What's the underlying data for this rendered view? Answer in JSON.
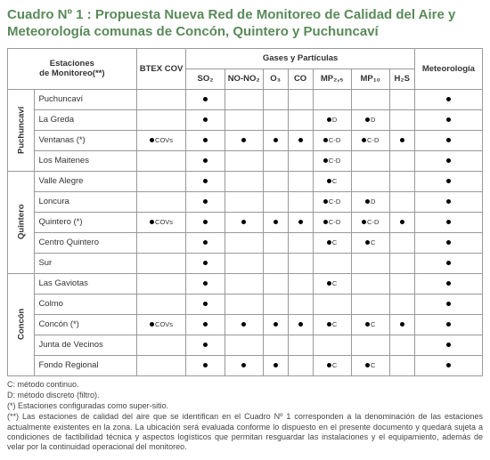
{
  "title": "Cuadro Nº 1 : Propuesta Nueva Red de Monitoreo de Calidad del Aire y Meteorología comunas de Concón, Quintero y Puchuncaví",
  "headers": {
    "estaciones": "Estaciones\nde Monitoreo(**)",
    "gases": "Gases y Partículas",
    "meteo": "Meteorología",
    "btex": "BTEX COV",
    "so2": "SO₂",
    "nono2": "NO-NO₂",
    "o3": "O₃",
    "co": "CO",
    "mp25": "MP₂,₅",
    "mp10": "MP₁₀",
    "h2s": "H₂S"
  },
  "groups": [
    {
      "name": "Puchuncaví",
      "rows": [
        {
          "station": "Puchuncaví",
          "btex": "",
          "so2": "•",
          "nono2": "",
          "o3": "",
          "co": "",
          "mp25": "",
          "mp10": "",
          "h2s": "",
          "meteo": "•"
        },
        {
          "station": "La Greda",
          "btex": "",
          "so2": "•",
          "nono2": "",
          "o3": "",
          "co": "",
          "mp25": "•D",
          "mp10": "•D",
          "h2s": "",
          "meteo": "•"
        },
        {
          "station": "Ventanas (*)",
          "btex": "•COVs",
          "so2": "•",
          "nono2": "•",
          "o3": "•",
          "co": "•",
          "mp25": "•C-D",
          "mp10": "•C-D",
          "h2s": "•",
          "meteo": "•"
        },
        {
          "station": "Los Maitenes",
          "btex": "",
          "so2": "•",
          "nono2": "",
          "o3": "",
          "co": "",
          "mp25": "•C-D",
          "mp10": "",
          "h2s": "",
          "meteo": "•"
        }
      ]
    },
    {
      "name": "Quintero",
      "rows": [
        {
          "station": "Valle Alegre",
          "btex": "",
          "so2": "•",
          "nono2": "",
          "o3": "",
          "co": "",
          "mp25": "•C",
          "mp10": "",
          "h2s": "",
          "meteo": "•"
        },
        {
          "station": "Loncura",
          "btex": "",
          "so2": "•",
          "nono2": "",
          "o3": "",
          "co": "",
          "mp25": "•C-D",
          "mp10": "•D",
          "h2s": "",
          "meteo": "•"
        },
        {
          "station": "Quintero (*)",
          "btex": "•COVs",
          "so2": "•",
          "nono2": "•",
          "o3": "•",
          "co": "•",
          "mp25": "•C-D",
          "mp10": "•C-D",
          "h2s": "•",
          "meteo": "•"
        },
        {
          "station": "Centro Quintero",
          "btex": "",
          "so2": "•",
          "nono2": "",
          "o3": "",
          "co": "",
          "mp25": "•C",
          "mp10": "•C",
          "h2s": "",
          "meteo": "•"
        },
        {
          "station": "Sur",
          "btex": "",
          "so2": "•",
          "nono2": "",
          "o3": "",
          "co": "",
          "mp25": "",
          "mp10": "",
          "h2s": "",
          "meteo": "•"
        }
      ]
    },
    {
      "name": "Concón",
      "rows": [
        {
          "station": "Las Gaviotas",
          "btex": "",
          "so2": "•",
          "nono2": "",
          "o3": "",
          "co": "",
          "mp25": "•C",
          "mp10": "",
          "h2s": "",
          "meteo": "•"
        },
        {
          "station": "Colmo",
          "btex": "",
          "so2": "•",
          "nono2": "",
          "o3": "",
          "co": "",
          "mp25": "",
          "mp10": "",
          "h2s": "",
          "meteo": "•"
        },
        {
          "station": "Concón (*)",
          "btex": "•COVs",
          "so2": "•",
          "nono2": "•",
          "o3": "•",
          "co": "•",
          "mp25": "•C",
          "mp10": "•C",
          "h2s": "•",
          "meteo": "•"
        },
        {
          "station": "Junta de Vecinos",
          "btex": "",
          "so2": "•",
          "nono2": "",
          "o3": "",
          "co": "",
          "mp25": "",
          "mp10": "",
          "h2s": "",
          "meteo": "•"
        },
        {
          "station": "Fondo Regional",
          "btex": "",
          "so2": "•",
          "nono2": "•",
          "o3": "•",
          "co": "",
          "mp25": "•C",
          "mp10": "•C",
          "h2s": "",
          "meteo": "•"
        }
      ]
    }
  ],
  "footnotes": {
    "c": "C: método continuo.",
    "d": "D: método discreto (filtro).",
    "s1": "(*) Estaciones configuradas como super-sitio.",
    "s2": "(**) Las estaciones de calidad del aire que se identifican en el Cuadro Nº 1 corresponden a la denominación de las estaciones actualmente existentes en la zona. La ubicación será evaluada conforme lo dispuesto en el presente documento y quedará sujeta a condiciones de factibilidad técnica y aspectos logísticos que permitan resguardar las instalaciones y el equipamiento, además de velar por la continuidad operacional del monitoreo."
  },
  "colors": {
    "title": "#5a8a5a",
    "border": "#999999",
    "text": "#333333",
    "background": "#ffffff"
  }
}
